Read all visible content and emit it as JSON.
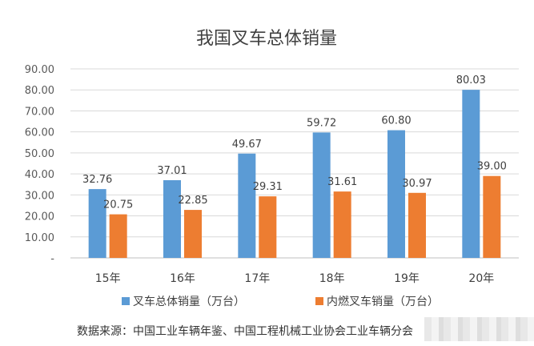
{
  "chart_data": {
    "type": "bar",
    "title": "我国叉车总体销量",
    "categories": [
      "15年",
      "16年",
      "17年",
      "18年",
      "19年",
      "20年"
    ],
    "series": [
      {
        "name": "叉车总体销量（万台）",
        "values": [
          32.76,
          37.01,
          49.67,
          59.72,
          60.8,
          80.03
        ],
        "labels": [
          "32.76",
          "37.01",
          "49.67",
          "59.72",
          "60.80",
          "80.03"
        ]
      },
      {
        "name": "内燃叉车销量（万台）",
        "values": [
          20.75,
          22.85,
          29.31,
          31.61,
          30.97,
          39.0
        ],
        "labels": [
          "20.75",
          "22.85",
          "29.31",
          "31.61",
          "30.97",
          "39.00"
        ]
      }
    ],
    "ylim": [
      0,
      90
    ],
    "ytick_labels": [
      "-",
      "10.00",
      "20.00",
      "30.00",
      "40.00",
      "50.00",
      "60.00",
      "70.00",
      "80.00",
      "90.00"
    ],
    "grid": true,
    "legend_position": "bottom",
    "colors": [
      "#5B9BD5",
      "#ED7D31"
    ]
  },
  "source_note": "数据来源：中国工业车辆年鉴、中国工程机械工业协会工业车辆分会"
}
